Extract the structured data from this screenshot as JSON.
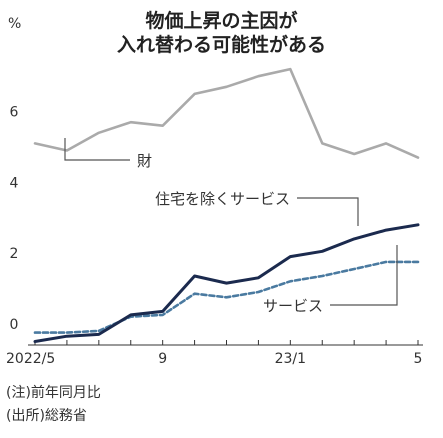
{
  "chart_data": {
    "type": "line",
    "title": "物価上昇の主因が\n入れ替わる可能性がある",
    "ylabel": "%",
    "ylim": [
      -0.6,
      7.6
    ],
    "y_ticks": [
      "6",
      "4",
      "2",
      "0"
    ],
    "x_tick_labels": [
      "2022/5",
      "9",
      "23/1",
      "5"
    ],
    "x": [
      "2022/5",
      "2022/6",
      "2022/7",
      "2022/8",
      "2022/9",
      "2022/10",
      "2022/11",
      "2022/12",
      "2023/1",
      "2023/2",
      "2023/3",
      "2023/4",
      "2023/5"
    ],
    "grid": false,
    "series": [
      {
        "name": "財",
        "color": "#aaaaaa",
        "style": "solid",
        "values": [
          5.1,
          4.9,
          5.4,
          5.7,
          5.6,
          6.5,
          6.7,
          7.0,
          7.2,
          5.1,
          4.8,
          5.1,
          4.7
        ]
      },
      {
        "name": "住宅を除くサービス",
        "color": "#1b2a4e",
        "style": "solid",
        "values": [
          -0.5,
          -0.35,
          -0.3,
          0.25,
          0.35,
          1.35,
          1.15,
          1.3,
          1.9,
          2.05,
          2.4,
          2.65,
          2.8
        ]
      },
      {
        "name": "サービス",
        "color": "#4a7aa0",
        "style": "dashed",
        "values": [
          -0.25,
          -0.25,
          -0.2,
          0.2,
          0.25,
          0.85,
          0.75,
          0.9,
          1.2,
          1.35,
          1.55,
          1.75,
          1.75
        ]
      }
    ]
  },
  "notes": [
    "(注)前年同月比",
    "(出所)総務省"
  ]
}
